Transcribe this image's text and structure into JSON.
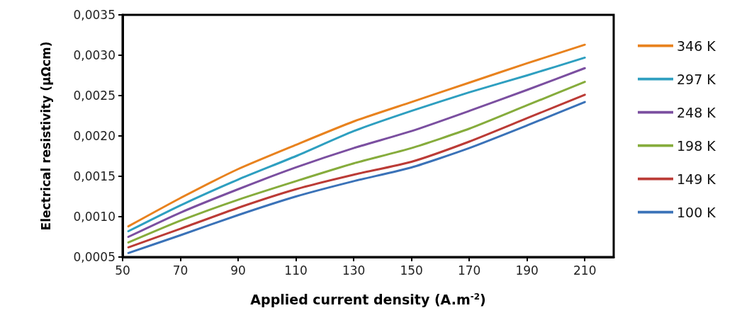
{
  "chart_data": {
    "type": "line",
    "xlabel": "Applied current density (A.m$^{-2}$)",
    "ylabel": "Electrical resistivity (μΩcm)",
    "x": [
      52,
      70,
      90,
      110,
      130,
      150,
      170,
      190,
      210
    ],
    "xlim": [
      50,
      220
    ],
    "xticks": [
      50,
      70,
      90,
      110,
      130,
      150,
      170,
      190,
      210
    ],
    "ylim": [
      0.0005,
      0.0035
    ],
    "yticks": [
      {
        "value": 0.0005,
        "label": "0,0005"
      },
      {
        "value": 0.001,
        "label": "0,0010"
      },
      {
        "value": 0.0015,
        "label": "0,0015"
      },
      {
        "value": 0.002,
        "label": "0,0020"
      },
      {
        "value": 0.0025,
        "label": "0,0025"
      },
      {
        "value": 0.003,
        "label": "0,0030"
      },
      {
        "value": 0.0035,
        "label": "0,0035"
      }
    ],
    "grid": false,
    "legend": "right",
    "marker": "none",
    "line_style": "solid",
    "series": [
      {
        "name": "346 K",
        "color": "#e8821e",
        "values": [
          0.00088,
          0.00123,
          0.00159,
          0.00189,
          0.00218,
          0.00242,
          0.00266,
          0.0029,
          0.00313
        ]
      },
      {
        "name": "297 K",
        "color": "#2e9fc0",
        "values": [
          0.00082,
          0.00114,
          0.00146,
          0.00175,
          0.00206,
          0.00231,
          0.00254,
          0.00275,
          0.00297
        ]
      },
      {
        "name": "248 K",
        "color": "#7b4fa0",
        "values": [
          0.00075,
          0.00105,
          0.00134,
          0.00161,
          0.00185,
          0.00206,
          0.00231,
          0.00257,
          0.00284
        ]
      },
      {
        "name": "198 K",
        "color": "#86ac3c",
        "values": [
          0.00068,
          0.00095,
          0.00121,
          0.00144,
          0.00166,
          0.00185,
          0.00209,
          0.00238,
          0.00267
        ]
      },
      {
        "name": "149 K",
        "color": "#bb3b36",
        "values": [
          0.00062,
          0.00085,
          0.00111,
          0.00134,
          0.00152,
          0.00168,
          0.00193,
          0.00222,
          0.00251
        ]
      },
      {
        "name": "100 K",
        "color": "#3a72b8",
        "values": [
          0.00055,
          0.00077,
          0.00102,
          0.00125,
          0.00144,
          0.00161,
          0.00185,
          0.00213,
          0.00242
        ]
      }
    ]
  }
}
